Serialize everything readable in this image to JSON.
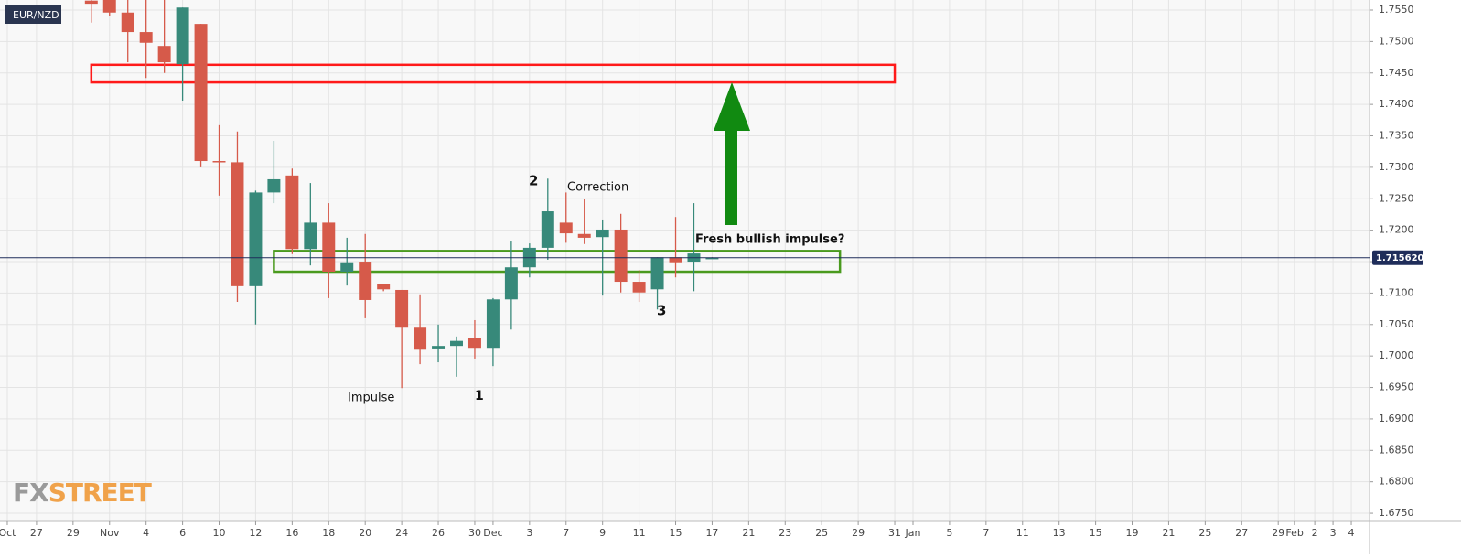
{
  "chart_data": {
    "type": "candlestick",
    "title": "EUR/NZD",
    "up_color": "#37897a",
    "down_color": "#d65a4a",
    "grid": true,
    "x": [
      5,
      6,
      7,
      8,
      9,
      10,
      11,
      12,
      13,
      14,
      15,
      16,
      17,
      18,
      19,
      20,
      21,
      22,
      23,
      24,
      25,
      26,
      27,
      28,
      29,
      30,
      31,
      32,
      33,
      34,
      35,
      36,
      37,
      38,
      39
    ],
    "open": [
      1.7565,
      1.7566,
      1.7546,
      1.7515,
      1.7493,
      1.7464,
      1.7528,
      1.731,
      1.7308,
      1.7111,
      1.726,
      1.7287,
      1.717,
      1.7212,
      1.7134,
      1.715,
      1.7114,
      1.7105,
      1.7045,
      1.7012,
      1.7016,
      1.7028,
      1.7013,
      1.709,
      1.7141,
      1.7172,
      1.7212,
      1.7194,
      1.7189,
      1.7201,
      1.7118,
      1.7106,
      1.7157,
      1.715,
      1.7156
    ],
    "high": [
      1.7566,
      1.7566,
      1.7566,
      1.7566,
      1.7566,
      1.7554,
      1.7528,
      1.7367,
      1.7357,
      1.7263,
      1.7342,
      1.7298,
      1.7275,
      1.7243,
      1.7188,
      1.7194,
      1.7115,
      1.7105,
      1.7098,
      1.705,
      1.7031,
      1.7057,
      1.7092,
      1.7182,
      1.7179,
      1.7282,
      1.726,
      1.7249,
      1.7217,
      1.7226,
      1.7137,
      1.7157,
      1.7221,
      1.7243,
      1.7157
    ],
    "low": [
      1.753,
      1.754,
      1.7467,
      1.7442,
      1.745,
      1.7406,
      1.73,
      1.7255,
      1.7086,
      1.705,
      1.7243,
      1.7162,
      1.7144,
      1.7092,
      1.7112,
      1.706,
      1.7103,
      1.6949,
      1.6987,
      1.699,
      1.6967,
      1.6996,
      1.6984,
      1.7042,
      1.7125,
      1.7153,
      1.718,
      1.7178,
      1.7096,
      1.7101,
      1.7086,
      1.7074,
      1.7125,
      1.7103,
      1.7156
    ],
    "close": [
      1.756,
      1.7546,
      1.7515,
      1.7498,
      1.7467,
      1.7554,
      1.731,
      1.7308,
      1.7111,
      1.726,
      1.7281,
      1.717,
      1.7212,
      1.7134,
      1.7149,
      1.7089,
      1.7106,
      1.7045,
      1.701,
      1.7016,
      1.7024,
      1.7013,
      1.709,
      1.7141,
      1.7172,
      1.723,
      1.7195,
      1.7188,
      1.7201,
      1.7118,
      1.7101,
      1.7157,
      1.7149,
      1.7163,
      1.7156
    ],
    "last_price": {
      "value": 1.71562,
      "label": "1.715620",
      "color": "#1f2d5a"
    },
    "xlim": [
      0,
      75
    ],
    "ylim": [
      1.6737,
      1.7566
    ],
    "yticks": [
      {
        "value": 1.675,
        "label": "1.6750"
      },
      {
        "value": 1.68,
        "label": "1.6800"
      },
      {
        "value": 1.685,
        "label": "1.6850"
      },
      {
        "value": 1.69,
        "label": "1.6900"
      },
      {
        "value": 1.695,
        "label": "1.6950"
      },
      {
        "value": 1.7,
        "label": "1.7000"
      },
      {
        "value": 1.705,
        "label": "1.7050"
      },
      {
        "value": 1.71,
        "label": "1.7100"
      },
      {
        "value": 1.715,
        "label": "1.7150"
      },
      {
        "value": 1.72,
        "label": "1.7200"
      },
      {
        "value": 1.725,
        "label": "1.7250"
      },
      {
        "value": 1.73,
        "label": "1.7300"
      },
      {
        "value": 1.735,
        "label": "1.7350"
      },
      {
        "value": 1.74,
        "label": "1.7400"
      },
      {
        "value": 1.745,
        "label": "1.7450"
      },
      {
        "value": 1.75,
        "label": "1.7500"
      },
      {
        "value": 1.755,
        "label": "1.7550"
      }
    ],
    "xticks": [
      {
        "value": 0.4,
        "label": "Oct"
      },
      {
        "value": 2,
        "label": "27"
      },
      {
        "value": 4,
        "label": "29"
      },
      {
        "value": 6,
        "label": "Nov"
      },
      {
        "value": 8,
        "label": "4"
      },
      {
        "value": 10,
        "label": "6"
      },
      {
        "value": 12,
        "label": "10"
      },
      {
        "value": 14,
        "label": "12"
      },
      {
        "value": 16,
        "label": "16"
      },
      {
        "value": 18,
        "label": "18"
      },
      {
        "value": 20,
        "label": "20"
      },
      {
        "value": 22,
        "label": "24"
      },
      {
        "value": 24,
        "label": "26"
      },
      {
        "value": 26,
        "label": "30"
      },
      {
        "value": 27,
        "label": "Dec"
      },
      {
        "value": 29,
        "label": "3"
      },
      {
        "value": 31,
        "label": "7"
      },
      {
        "value": 33,
        "label": "9"
      },
      {
        "value": 35,
        "label": "11"
      },
      {
        "value": 37,
        "label": "15"
      },
      {
        "value": 39,
        "label": "17"
      },
      {
        "value": 41,
        "label": "21"
      },
      {
        "value": 43,
        "label": "23"
      },
      {
        "value": 45,
        "label": "25"
      },
      {
        "value": 47,
        "label": "29"
      },
      {
        "value": 49,
        "label": "31"
      },
      {
        "value": 50,
        "label": "Jan"
      },
      {
        "value": 52,
        "label": "5"
      },
      {
        "value": 54,
        "label": "7"
      },
      {
        "value": 56,
        "label": "11"
      },
      {
        "value": 58,
        "label": "13"
      },
      {
        "value": 60,
        "label": "15"
      },
      {
        "value": 62,
        "label": "19"
      },
      {
        "value": 64,
        "label": "21"
      },
      {
        "value": 66,
        "label": "25"
      },
      {
        "value": 68,
        "label": "27"
      },
      {
        "value": 70,
        "label": "29"
      },
      {
        "value": 70.9,
        "label": "Feb"
      },
      {
        "value": 72,
        "label": "2"
      },
      {
        "value": 73,
        "label": "3"
      },
      {
        "value": 74,
        "label": "4"
      }
    ],
    "zones": [
      {
        "color": "#ff1a1a",
        "low": 1.7435,
        "high": 1.7463,
        "x0": 5,
        "x1": 49
      },
      {
        "color": "#4a9a1e",
        "low": 1.7134,
        "high": 1.7167,
        "x0": 15,
        "x1": 46
      }
    ],
    "annotations": [
      "2",
      "Correction",
      "Impulse",
      "1",
      "3",
      "Fresh bullish impulse?"
    ],
    "watermark": [
      "FX",
      "STREET"
    ]
  }
}
